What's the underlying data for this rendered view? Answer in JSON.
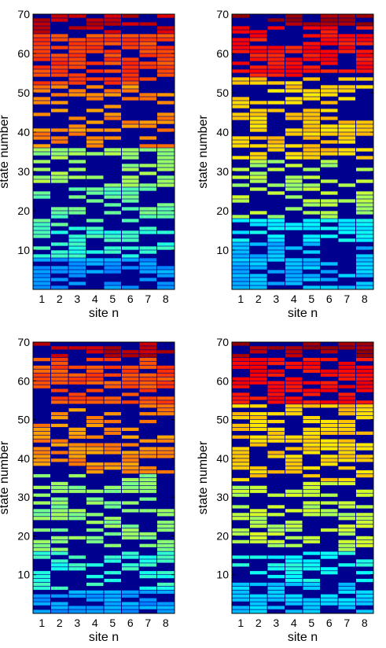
{
  "chart_data": [
    {
      "type": "heatmap",
      "title": "",
      "xlabel": "site n",
      "ylabel": "state number",
      "x": [
        1,
        2,
        3,
        4,
        5,
        6,
        7,
        8
      ],
      "y_ticks": [
        10,
        20,
        30,
        40,
        50,
        60,
        70
      ],
      "ylim": [
        0,
        70
      ],
      "colormap": "jet",
      "background": "#00008f",
      "seed": 11,
      "segments": [
        {
          "from": 1,
          "to": 9,
          "color": 0.28,
          "dens": 0.62
        },
        {
          "from": 9,
          "to": 17,
          "color": 0.43,
          "dens": 0.58
        },
        {
          "from": 17,
          "to": 27,
          "color": 0.47,
          "dens": 0.48
        },
        {
          "from": 27,
          "to": 37,
          "color": 0.53,
          "dens": 0.52
        },
        {
          "from": 37,
          "to": 53,
          "color": 0.74,
          "dens": 0.5
        },
        {
          "from": 53,
          "to": 66,
          "color": 0.81,
          "dens": 0.72
        },
        {
          "from": 66,
          "to": 71,
          "color": 0.93,
          "dens": 0.55
        }
      ]
    },
    {
      "type": "heatmap",
      "title": "",
      "xlabel": "site n",
      "ylabel": "state number",
      "x": [
        1,
        2,
        3,
        4,
        5,
        6,
        7,
        8
      ],
      "y_ticks": [
        10,
        20,
        30,
        40,
        50,
        60,
        70
      ],
      "ylim": [
        0,
        70
      ],
      "colormap": "jet",
      "background": "#00008f",
      "seed": 23,
      "segments": [
        {
          "from": 1,
          "to": 13,
          "color": 0.31,
          "dens": 0.58
        },
        {
          "from": 13,
          "to": 19,
          "color": 0.37,
          "dens": 0.52
        },
        {
          "from": 19,
          "to": 34,
          "color": 0.55,
          "dens": 0.48
        },
        {
          "from": 34,
          "to": 55,
          "color": 0.67,
          "dens": 0.55
        },
        {
          "from": 55,
          "to": 68,
          "color": 0.86,
          "dens": 0.68
        },
        {
          "from": 68,
          "to": 71,
          "color": 0.96,
          "dens": 0.6
        }
      ]
    },
    {
      "type": "heatmap",
      "title": "",
      "xlabel": "site n",
      "ylabel": "state number",
      "x": [
        1,
        2,
        3,
        4,
        5,
        6,
        7,
        8
      ],
      "y_ticks": [
        10,
        20,
        30,
        40,
        50,
        60,
        70
      ],
      "ylim": [
        0,
        70
      ],
      "colormap": "jet",
      "background": "#00008f",
      "seed": 37,
      "segments": [
        {
          "from": 1,
          "to": 7,
          "color": 0.28,
          "dens": 0.6
        },
        {
          "from": 7,
          "to": 17,
          "color": 0.42,
          "dens": 0.52
        },
        {
          "from": 17,
          "to": 37,
          "color": 0.51,
          "dens": 0.5
        },
        {
          "from": 37,
          "to": 55,
          "color": 0.74,
          "dens": 0.52
        },
        {
          "from": 55,
          "to": 67,
          "color": 0.8,
          "dens": 0.68
        },
        {
          "from": 67,
          "to": 71,
          "color": 0.94,
          "dens": 0.6
        }
      ]
    },
    {
      "type": "heatmap",
      "title": "",
      "xlabel": "site n",
      "ylabel": "state number",
      "x": [
        1,
        2,
        3,
        4,
        5,
        6,
        7,
        8
      ],
      "y_ticks": [
        10,
        20,
        30,
        40,
        50,
        60,
        70
      ],
      "ylim": [
        0,
        70
      ],
      "colormap": "jet",
      "background": "#00008f",
      "seed": 53,
      "segments": [
        {
          "from": 1,
          "to": 9,
          "color": 0.33,
          "dens": 0.6
        },
        {
          "from": 9,
          "to": 17,
          "color": 0.39,
          "dens": 0.55
        },
        {
          "from": 17,
          "to": 35,
          "color": 0.56,
          "dens": 0.48
        },
        {
          "from": 35,
          "to": 55,
          "color": 0.67,
          "dens": 0.55
        },
        {
          "from": 55,
          "to": 67,
          "color": 0.87,
          "dens": 0.7
        },
        {
          "from": 67,
          "to": 71,
          "color": 0.96,
          "dens": 0.6
        }
      ]
    }
  ]
}
